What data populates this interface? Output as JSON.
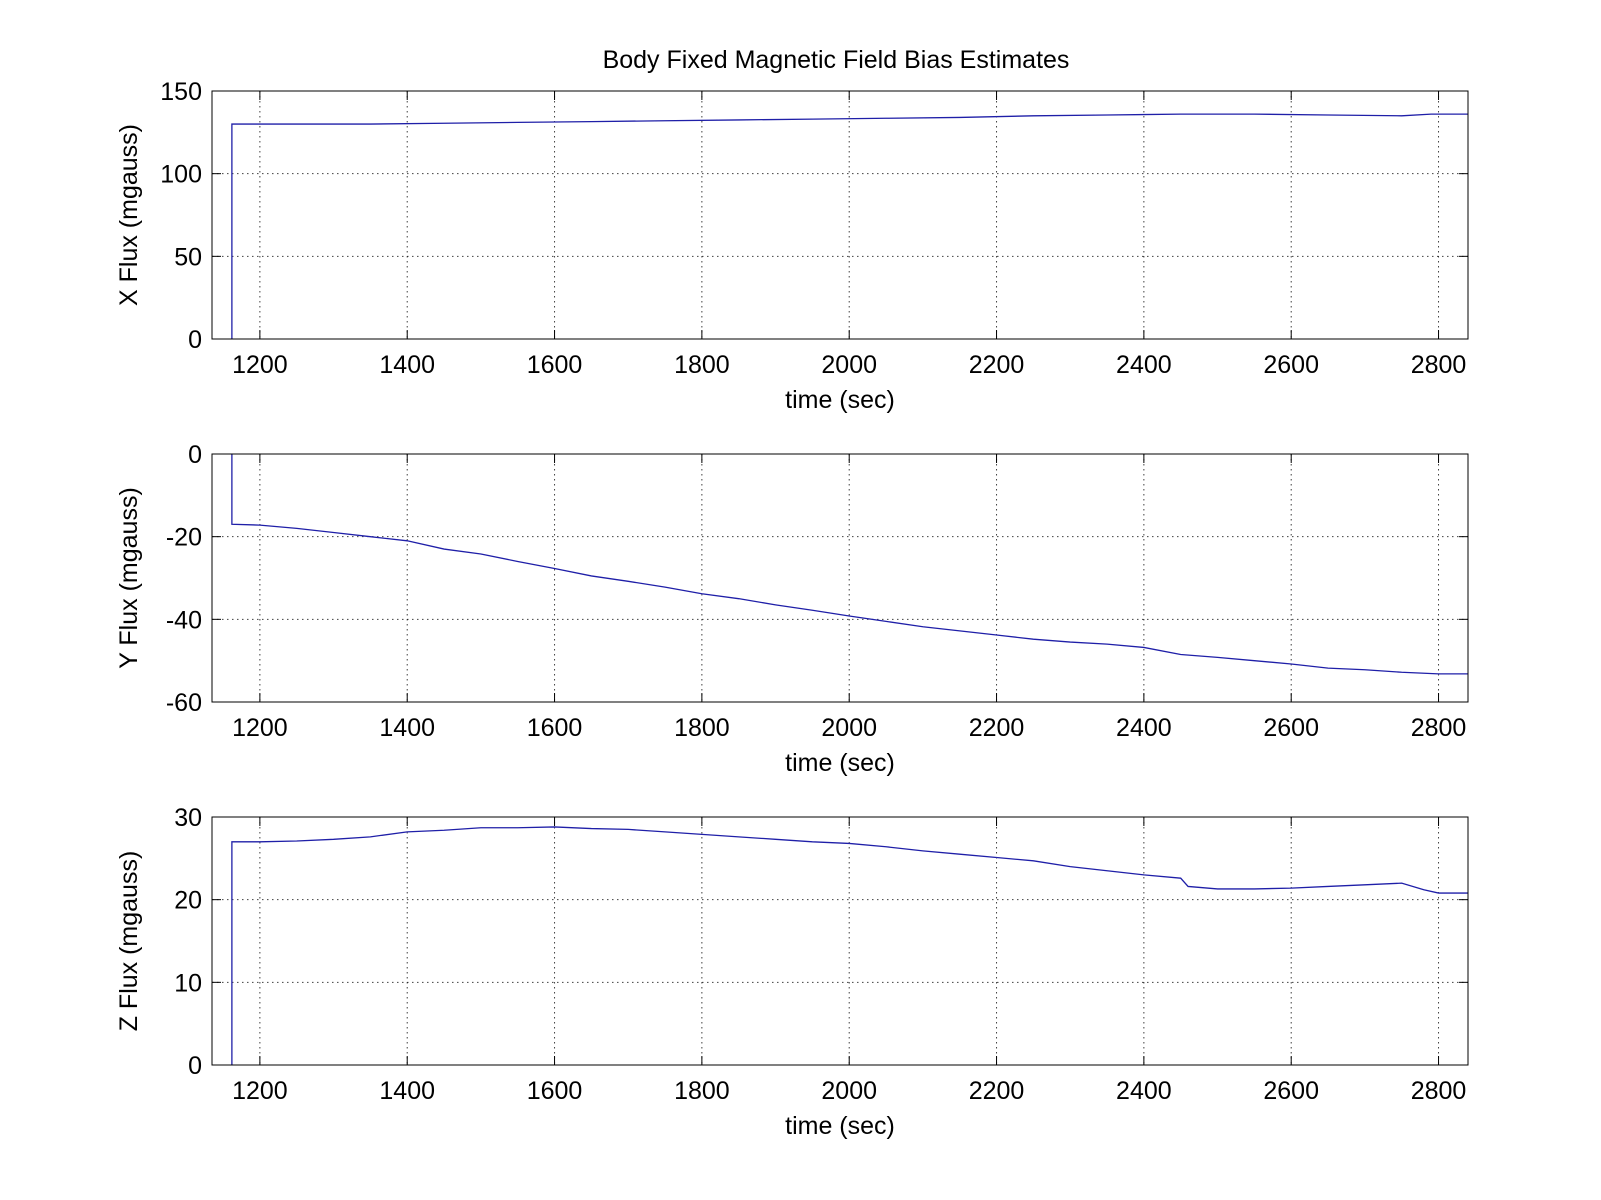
{
  "chart_data": [
    {
      "type": "line",
      "title": "Body Fixed Magnetic Field Bias Estimates",
      "xlabel": "time (sec)",
      "ylabel": "X Flux (mgauss)",
      "xlim": [
        1135,
        2840
      ],
      "ylim": [
        0,
        150
      ],
      "xticks": [
        1200,
        1400,
        1600,
        1800,
        2000,
        2200,
        2400,
        2600,
        2800
      ],
      "yticks": [
        0,
        50,
        100,
        150
      ],
      "grid": true,
      "series_color": "#1f1fa8",
      "series": [
        {
          "x": [
            1162,
            1162,
            1250,
            1350,
            1450,
            1550,
            1650,
            1750,
            1850,
            1950,
            2050,
            2150,
            2250,
            2350,
            2450,
            2550,
            2650,
            2750,
            2790,
            2840
          ],
          "y": [
            0,
            130,
            130,
            130,
            130.5,
            131,
            131.5,
            132,
            132.5,
            133,
            133.5,
            134,
            135,
            135.5,
            136,
            136,
            135.5,
            135,
            136,
            136
          ]
        }
      ]
    },
    {
      "type": "line",
      "title": "",
      "xlabel": "time (sec)",
      "ylabel": "Y Flux (mgauss)",
      "xlim": [
        1135,
        2840
      ],
      "ylim": [
        -60,
        0
      ],
      "xticks": [
        1200,
        1400,
        1600,
        1800,
        2000,
        2200,
        2400,
        2600,
        2800
      ],
      "yticks": [
        -60,
        -40,
        -20,
        0
      ],
      "grid": true,
      "series_color": "#1f1fa8",
      "series": [
        {
          "x": [
            1162,
            1162,
            1200,
            1250,
            1300,
            1350,
            1400,
            1450,
            1500,
            1550,
            1600,
            1650,
            1700,
            1750,
            1800,
            1850,
            1900,
            1950,
            2000,
            2050,
            2100,
            2150,
            2200,
            2250,
            2300,
            2350,
            2400,
            2450,
            2500,
            2550,
            2600,
            2650,
            2700,
            2750,
            2800,
            2840
          ],
          "y": [
            0,
            -17,
            -17.2,
            -18,
            -19,
            -20,
            -21,
            -23,
            -24.2,
            -26,
            -27.7,
            -29.5,
            -30.8,
            -32.2,
            -33.8,
            -35,
            -36.5,
            -37.8,
            -39.2,
            -40.5,
            -41.8,
            -42.8,
            -43.8,
            -44.8,
            -45.5,
            -46,
            -46.8,
            -48.5,
            -49.2,
            -50,
            -50.8,
            -51.8,
            -52.2,
            -52.8,
            -53.2,
            -53.2
          ]
        }
      ]
    },
    {
      "type": "line",
      "title": "",
      "xlabel": "time (sec)",
      "ylabel": "Z Flux (mgauss)",
      "xlim": [
        1135,
        2840
      ],
      "ylim": [
        0,
        30
      ],
      "xticks": [
        1200,
        1400,
        1600,
        1800,
        2000,
        2200,
        2400,
        2600,
        2800
      ],
      "yticks": [
        0,
        10,
        20,
        30
      ],
      "grid": true,
      "series_color": "#1f1fa8",
      "series": [
        {
          "x": [
            1162,
            1162,
            1200,
            1250,
            1300,
            1350,
            1400,
            1450,
            1500,
            1550,
            1600,
            1650,
            1700,
            1750,
            1800,
            1850,
            1900,
            1950,
            2000,
            2050,
            2100,
            2150,
            2200,
            2250,
            2300,
            2350,
            2400,
            2450,
            2460,
            2500,
            2550,
            2600,
            2650,
            2700,
            2750,
            2780,
            2800,
            2840
          ],
          "y": [
            0,
            27,
            27,
            27.1,
            27.3,
            27.6,
            28.2,
            28.4,
            28.7,
            28.7,
            28.8,
            28.6,
            28.5,
            28.2,
            27.9,
            27.6,
            27.3,
            27,
            26.8,
            26.4,
            25.9,
            25.5,
            25.1,
            24.7,
            24,
            23.5,
            23,
            22.6,
            21.6,
            21.3,
            21.3,
            21.4,
            21.6,
            21.8,
            22,
            21.2,
            20.8,
            20.8
          ]
        }
      ]
    }
  ]
}
